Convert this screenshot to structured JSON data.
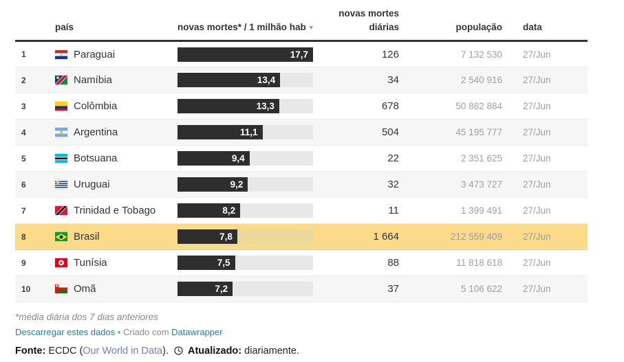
{
  "table": {
    "max_value": 17.7,
    "headers": {
      "rank": "",
      "country": "país",
      "bar": "novas mortes* / 1 milhão hab",
      "deaths": "novas mortes diárias",
      "population": "população",
      "date": "data"
    },
    "sort_icon": "▼",
    "rows": [
      {
        "rank": "1",
        "country": "Paraguai",
        "flag": "py",
        "value": 17.7,
        "value_label": "17,7",
        "deaths": "126",
        "population": "7 132 530",
        "date": "27/Jun",
        "highlight": false
      },
      {
        "rank": "2",
        "country": "Namíbia",
        "flag": "na",
        "value": 13.4,
        "value_label": "13,4",
        "deaths": "34",
        "population": "2 540 916",
        "date": "27/Jun",
        "highlight": false
      },
      {
        "rank": "3",
        "country": "Colômbia",
        "flag": "co",
        "value": 13.3,
        "value_label": "13,3",
        "deaths": "678",
        "population": "50 882 884",
        "date": "27/Jun",
        "highlight": false
      },
      {
        "rank": "4",
        "country": "Argentina",
        "flag": "ar",
        "value": 11.1,
        "value_label": "11,1",
        "deaths": "504",
        "population": "45 195 777",
        "date": "27/Jun",
        "highlight": false
      },
      {
        "rank": "5",
        "country": "Botsuana",
        "flag": "bw",
        "value": 9.4,
        "value_label": "9,4",
        "deaths": "22",
        "population": "2 351 625",
        "date": "27/Jun",
        "highlight": false
      },
      {
        "rank": "6",
        "country": "Uruguai",
        "flag": "uy",
        "value": 9.2,
        "value_label": "9,2",
        "deaths": "32",
        "population": "3 473 727",
        "date": "27/Jun",
        "highlight": false
      },
      {
        "rank": "7",
        "country": "Trinidad e Tobago",
        "flag": "tt",
        "value": 8.2,
        "value_label": "8,2",
        "deaths": "11",
        "population": "1 399 491",
        "date": "27/Jun",
        "highlight": false
      },
      {
        "rank": "8",
        "country": "Brasil",
        "flag": "br",
        "value": 7.8,
        "value_label": "7,8",
        "deaths": "1 664",
        "population": "212 559 409",
        "date": "27/Jun",
        "highlight": true
      },
      {
        "rank": "9",
        "country": "Tunísia",
        "flag": "tn",
        "value": 7.5,
        "value_label": "7,5",
        "deaths": "88",
        "population": "11 818 618",
        "date": "27/Jun",
        "highlight": false
      },
      {
        "rank": "10",
        "country": "Omã",
        "flag": "om",
        "value": 7.2,
        "value_label": "7,2",
        "deaths": "37",
        "population": "5 106 622",
        "date": "27/Jun",
        "highlight": false
      }
    ]
  },
  "chart_data": {
    "type": "bar",
    "title": "",
    "categories": [
      "Paraguai",
      "Namíbia",
      "Colômbia",
      "Argentina",
      "Botsuana",
      "Uruguai",
      "Trinidad e Tobago",
      "Brasil",
      "Tunísia",
      "Omã"
    ],
    "series": [
      {
        "name": "novas mortes* / 1 milhão hab",
        "values": [
          17.7,
          13.4,
          13.3,
          11.1,
          9.4,
          9.2,
          8.2,
          7.8,
          7.5,
          7.2
        ]
      },
      {
        "name": "novas mortes diárias",
        "values": [
          126,
          34,
          678,
          504,
          22,
          32,
          11,
          1664,
          88,
          37
        ]
      },
      {
        "name": "população",
        "values": [
          7132530,
          2540916,
          50882884,
          45195777,
          2351625,
          3473727,
          1399491,
          212559409,
          11818618,
          5106622
        ]
      }
    ],
    "date_values": [
      "27/Jun",
      "27/Jun",
      "27/Jun",
      "27/Jun",
      "27/Jun",
      "27/Jun",
      "27/Jun",
      "27/Jun",
      "27/Jun",
      "27/Jun"
    ],
    "xlim": [
      0,
      17.7
    ],
    "highlighted_category": "Brasil",
    "grid": false,
    "legend_position": "none"
  },
  "footer": {
    "footnote": "*média diária dos 7 dias anteriores",
    "download_link": "Descarregar estes dados",
    "separator": "•",
    "created_with": "Criado com",
    "datawrapper_link": "Datawrapper",
    "source_label": "Fonte:",
    "source_prefix": "ECDC (",
    "source_link": "Our World in Data",
    "source_suffix": ").",
    "updated_label": "Atualizado:",
    "updated_value": "diariamente."
  },
  "colors": {
    "bar_fill": "#2e2e2e",
    "bar_track": "#e8e8e8",
    "highlight_row": "#fbda89",
    "striped_row": "#f6f6f6",
    "link_blue": "#1d81a2",
    "owid_link": "#6e81c9",
    "muted_text": "#9e9e9e"
  }
}
